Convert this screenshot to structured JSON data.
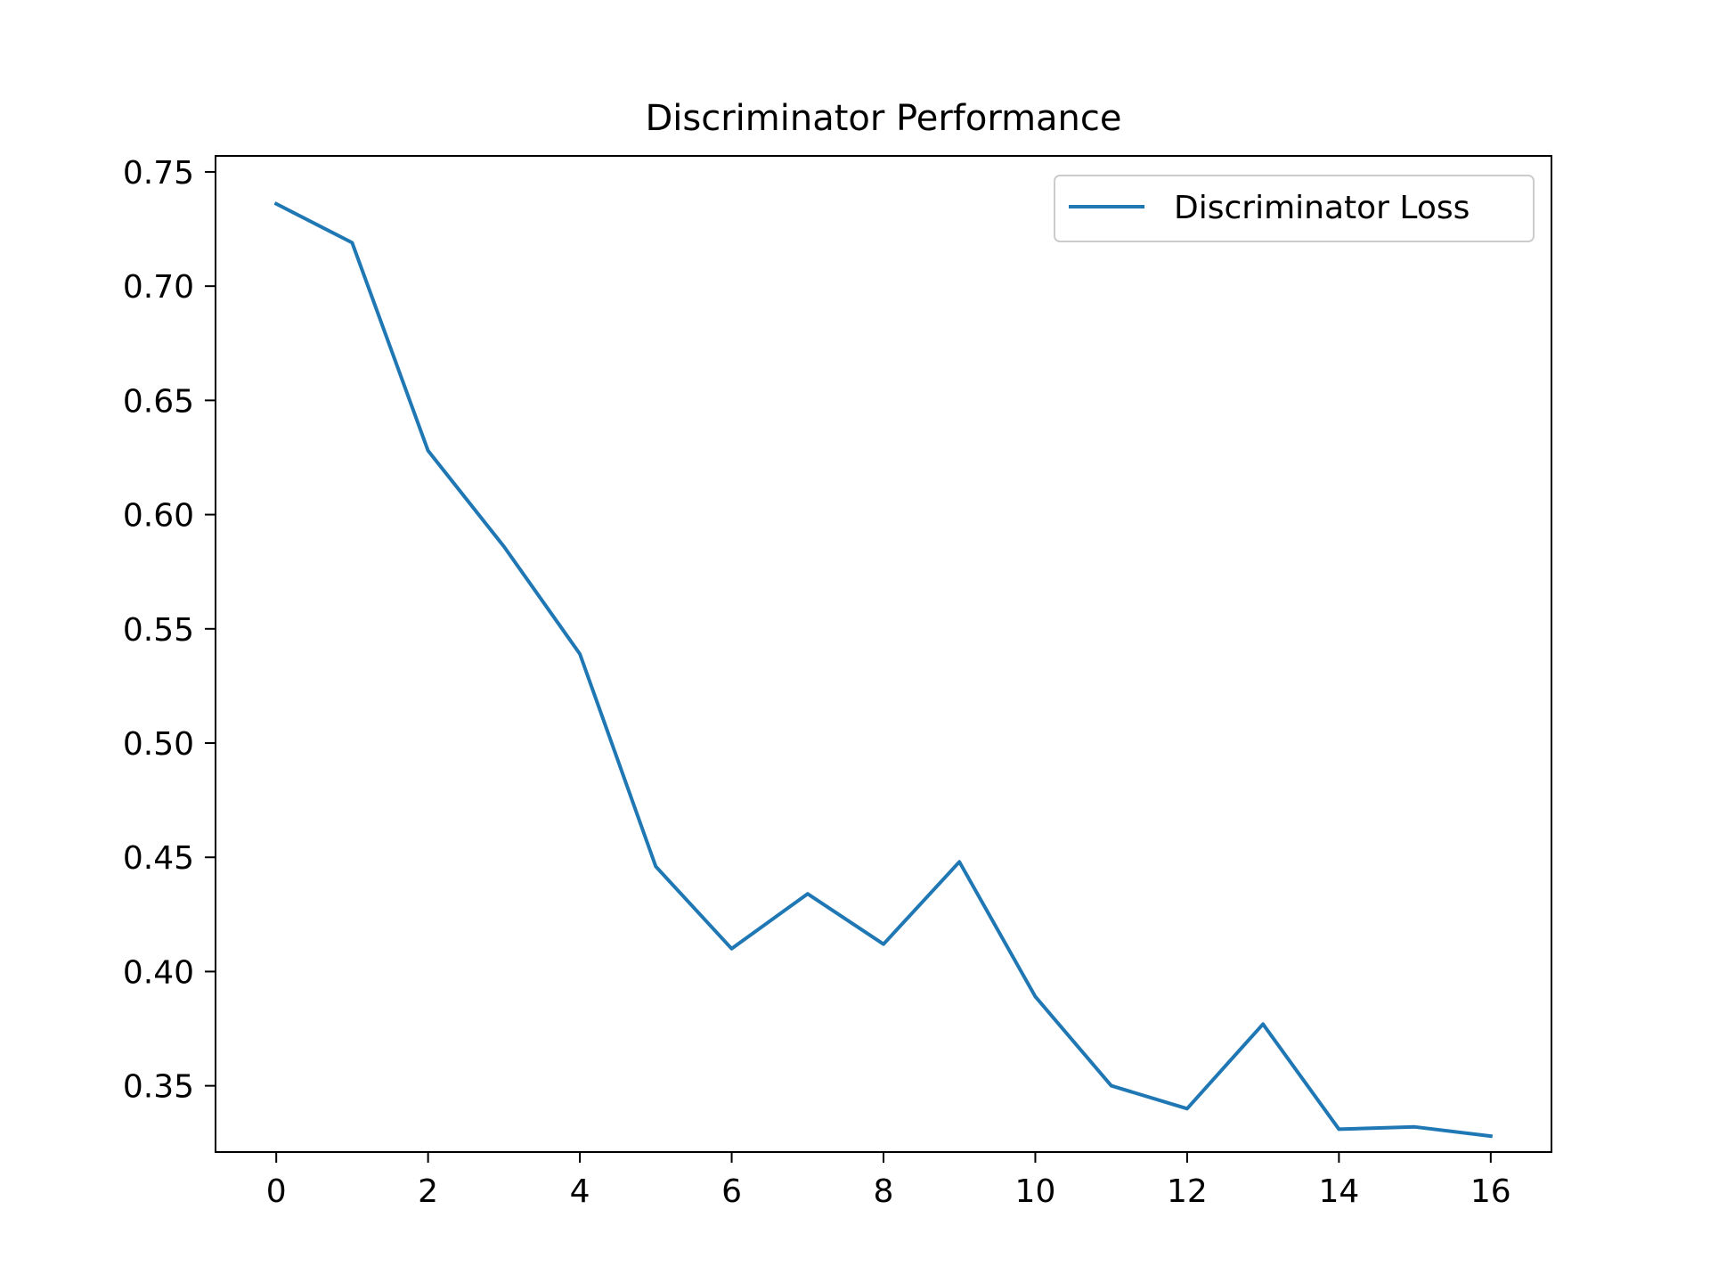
{
  "chart_data": {
    "type": "line",
    "title": "Discriminator Performance",
    "xlabel": "",
    "ylabel": "",
    "xlim": [
      -0.8,
      16.8
    ],
    "ylim": [
      0.321,
      0.757
    ],
    "xticks": [
      0,
      2,
      4,
      6,
      8,
      10,
      12,
      14,
      16
    ],
    "yticks": [
      0.35,
      0.4,
      0.45,
      0.5,
      0.55,
      0.6,
      0.65,
      0.7,
      0.75
    ],
    "grid": false,
    "legend_position": "top-right",
    "series": [
      {
        "name": "Discriminator Loss",
        "color": "#1f77b4",
        "x": [
          0,
          1,
          2,
          3,
          4,
          5,
          6,
          7,
          8,
          9,
          10,
          11,
          12,
          13,
          14,
          15,
          16
        ],
        "y": [
          0.736,
          0.719,
          0.628,
          0.586,
          0.539,
          0.446,
          0.41,
          0.434,
          0.412,
          0.448,
          0.389,
          0.35,
          0.34,
          0.377,
          0.331,
          0.332,
          0.328
        ]
      }
    ]
  }
}
